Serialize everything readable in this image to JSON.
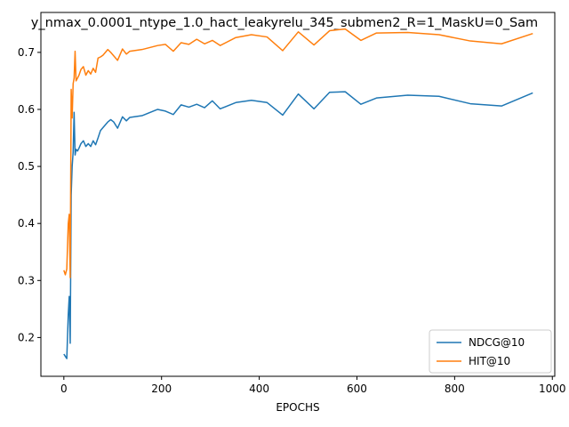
{
  "chart_data": {
    "type": "line",
    "title": "y_nmax_0.0001_ntype_1.0_hact_leakyrelu_345_submen2_R=1_MaskU=0_Sam",
    "xlabel": "EPOCHS",
    "ylabel": "",
    "xlim": [
      -47,
      1005
    ],
    "ylim": [
      0.132,
      0.77
    ],
    "xticks": [
      0,
      200,
      400,
      600,
      800,
      1000
    ],
    "yticks": [
      0.2,
      0.3,
      0.4,
      0.5,
      0.6,
      0.7
    ],
    "grid": false,
    "legend_position": "lower-right",
    "series": [
      {
        "name": "NDCG@10",
        "color": "#1f77b4",
        "x": [
          0,
          3,
          6,
          9,
          11,
          13,
          15,
          17,
          19,
          21,
          23,
          25,
          28,
          31,
          35,
          40,
          45,
          50,
          55,
          60,
          65,
          70,
          75,
          80,
          90,
          96,
          102,
          110,
          120,
          128,
          135,
          160,
          192,
          208,
          224,
          240,
          256,
          272,
          288,
          304,
          320,
          352,
          384,
          416,
          448,
          480,
          512,
          544,
          576,
          608,
          640,
          704,
          768,
          832,
          896,
          960
        ],
        "y": [
          0.171,
          0.167,
          0.163,
          0.24,
          0.272,
          0.19,
          0.45,
          0.5,
          0.525,
          0.595,
          0.52,
          0.53,
          0.527,
          0.532,
          0.54,
          0.545,
          0.535,
          0.54,
          0.535,
          0.545,
          0.538,
          0.55,
          0.563,
          0.568,
          0.578,
          0.582,
          0.578,
          0.567,
          0.587,
          0.58,
          0.586,
          0.589,
          0.6,
          0.597,
          0.591,
          0.608,
          0.604,
          0.609,
          0.603,
          0.615,
          0.601,
          0.612,
          0.616,
          0.612,
          0.59,
          0.627,
          0.601,
          0.63,
          0.631,
          0.609,
          0.62,
          0.625,
          0.623,
          0.61,
          0.606,
          0.629
        ]
      },
      {
        "name": "HIT@10",
        "color": "#ff7f0e",
        "x": [
          0,
          3,
          6,
          9,
          11,
          13,
          15,
          17,
          19,
          21,
          23,
          25,
          28,
          31,
          35,
          40,
          45,
          50,
          55,
          60,
          65,
          70,
          75,
          80,
          90,
          96,
          102,
          110,
          120,
          128,
          135,
          160,
          192,
          208,
          224,
          240,
          256,
          272,
          288,
          304,
          320,
          352,
          384,
          416,
          448,
          480,
          512,
          544,
          576,
          608,
          640,
          704,
          768,
          832,
          896,
          960
        ],
        "y": [
          0.318,
          0.31,
          0.32,
          0.4,
          0.416,
          0.305,
          0.635,
          0.585,
          0.645,
          0.655,
          0.702,
          0.65,
          0.655,
          0.66,
          0.67,
          0.675,
          0.66,
          0.668,
          0.662,
          0.672,
          0.665,
          0.69,
          0.692,
          0.695,
          0.705,
          0.7,
          0.694,
          0.686,
          0.706,
          0.697,
          0.702,
          0.705,
          0.712,
          0.714,
          0.702,
          0.717,
          0.714,
          0.723,
          0.715,
          0.721,
          0.712,
          0.726,
          0.731,
          0.727,
          0.703,
          0.736,
          0.713,
          0.738,
          0.741,
          0.721,
          0.734,
          0.735,
          0.731,
          0.72,
          0.715,
          0.733
        ]
      }
    ]
  }
}
